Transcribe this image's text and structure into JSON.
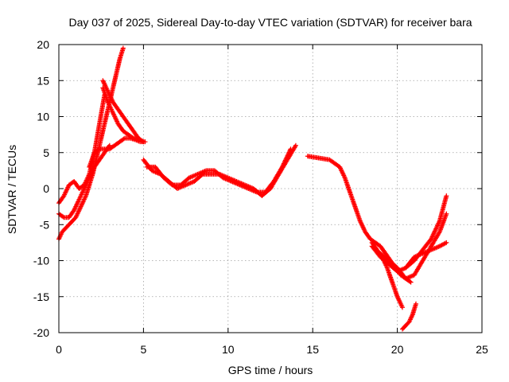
{
  "chart_data": {
    "type": "scatter",
    "title": "Day 037 of 2025, Sidereal Day-to-day VTEC variation (SDTVAR) for receiver bara",
    "xlabel": "GPS time / hours",
    "ylabel": "SDTVAR / TECUs",
    "xlim": [
      0,
      25
    ],
    "ylim": [
      -20,
      20
    ],
    "x_ticks": [
      0,
      5,
      10,
      15,
      20,
      25
    ],
    "y_ticks": [
      -20,
      -15,
      -10,
      -5,
      0,
      5,
      10,
      15,
      20
    ],
    "x_tick_labels": [
      "0",
      "5",
      "10",
      "15",
      "20",
      "25"
    ],
    "y_tick_labels": [
      "-20",
      "-15",
      "-10",
      "-5",
      "0",
      "5",
      "10",
      "15",
      "20"
    ],
    "grid": true,
    "marker": "plus",
    "color": "#ff0000",
    "series": [
      {
        "x": [
          0.0,
          0.2,
          0.4,
          0.6,
          0.8,
          1.0,
          1.2,
          1.4,
          1.6,
          1.8,
          2.0,
          2.2,
          2.4,
          2.6,
          2.8,
          3.0,
          3.2,
          3.4,
          3.6,
          3.8
        ],
        "y": [
          -7.0,
          -6.0,
          -5.5,
          -5.0,
          -4.5,
          -4.0,
          -3.0,
          -2.0,
          -1.0,
          0.5,
          2.0,
          4.0,
          6.0,
          8.0,
          10.0,
          12.0,
          14.0,
          16.0,
          18.0,
          19.5
        ]
      },
      {
        "x": [
          0.0,
          0.3,
          0.6,
          0.9,
          1.2,
          1.5,
          1.8,
          2.1,
          2.4,
          2.7,
          3.0
        ],
        "y": [
          -3.5,
          -4.0,
          -4.0,
          -3.0,
          -1.5,
          0.0,
          1.5,
          3.0,
          4.0,
          5.0,
          6.0
        ]
      },
      {
        "x": [
          0.0,
          0.3,
          0.6,
          0.9,
          1.2,
          1.5,
          1.8,
          2.1,
          2.4,
          2.7
        ],
        "y": [
          -2.0,
          -1.0,
          0.5,
          1.0,
          0.0,
          0.5,
          2.0,
          5.0,
          9.0,
          13.0
        ]
      },
      {
        "x": [
          2.6,
          2.9,
          3.2,
          3.5,
          3.8,
          4.1,
          4.4,
          4.7,
          5.0
        ],
        "y": [
          15.0,
          13.5,
          12.0,
          11.0,
          10.0,
          9.0,
          8.0,
          7.0,
          6.5
        ]
      },
      {
        "x": [
          2.6,
          2.9,
          3.2,
          3.5,
          3.8,
          4.1,
          4.4,
          4.7
        ],
        "y": [
          14.0,
          12.0,
          10.5,
          9.0,
          8.0,
          7.5,
          7.0,
          7.0
        ]
      },
      {
        "x": [
          1.8,
          2.1,
          2.4,
          2.7,
          3.0,
          3.3,
          3.6,
          3.9,
          4.2,
          4.5,
          4.8,
          5.1
        ],
        "y": [
          3.0,
          5.0,
          5.5,
          5.5,
          5.5,
          6.0,
          6.5,
          7.0,
          7.0,
          6.8,
          6.5,
          6.5
        ]
      },
      {
        "x": [
          5.0,
          5.5,
          6.0,
          6.5,
          7.0,
          7.5,
          8.0,
          8.5,
          9.0,
          9.5,
          10.0,
          10.5,
          11.0,
          11.5,
          12.0,
          12.5,
          13.0,
          13.5,
          14.0
        ],
        "y": [
          4.0,
          2.5,
          2.0,
          1.0,
          0.0,
          0.5,
          1.0,
          2.0,
          2.0,
          2.0,
          1.5,
          1.0,
          0.5,
          0.0,
          -1.0,
          0.0,
          2.0,
          4.0,
          6.0
        ]
      },
      {
        "x": [
          5.2,
          5.7,
          6.2,
          6.7,
          7.2,
          7.7,
          8.2,
          8.7,
          9.2,
          9.7,
          10.2,
          10.7,
          11.2,
          11.7,
          12.2,
          12.7,
          13.2,
          13.7
        ],
        "y": [
          3.0,
          3.0,
          1.5,
          0.5,
          0.5,
          1.5,
          2.0,
          2.5,
          2.5,
          1.5,
          1.0,
          0.5,
          0.0,
          -0.5,
          -0.5,
          1.0,
          3.0,
          5.5
        ]
      },
      {
        "x": [
          14.7,
          16.0,
          16.3,
          16.6,
          16.9,
          17.2,
          17.5,
          17.8,
          18.1,
          18.4,
          18.7,
          19.0,
          19.3,
          19.6,
          19.9,
          20.2,
          20.5,
          20.8
        ],
        "y": [
          4.5,
          4.0,
          3.5,
          3.0,
          1.5,
          -0.5,
          -2.5,
          -4.5,
          -6.0,
          -7.0,
          -7.5,
          -8.0,
          -9.0,
          -10.0,
          -11.0,
          -12.0,
          -12.5,
          -13.0
        ]
      },
      {
        "x": [
          18.5,
          18.8,
          19.1,
          19.4,
          19.7,
          20.0,
          20.3
        ],
        "y": [
          -7.5,
          -8.5,
          -9.5,
          -11.0,
          -13.0,
          -15.0,
          -16.5
        ]
      },
      {
        "x": [
          20.3,
          20.5,
          20.7,
          20.9,
          21.1
        ],
        "y": [
          -19.5,
          -19.0,
          -18.5,
          -17.5,
          -16.0
        ]
      },
      {
        "x": [
          18.5,
          19.0,
          19.5,
          20.0,
          20.5,
          21.0,
          21.5,
          22.0,
          22.5,
          22.9
        ],
        "y": [
          -8.0,
          -9.5,
          -10.5,
          -11.5,
          -11.0,
          -10.0,
          -8.5,
          -7.0,
          -4.5,
          -1.0
        ]
      },
      {
        "x": [
          19.0,
          19.5,
          20.0,
          20.5,
          21.0,
          21.5,
          22.0,
          22.5,
          22.9
        ],
        "y": [
          -9.0,
          -10.0,
          -11.0,
          -12.5,
          -12.0,
          -10.0,
          -8.0,
          -6.0,
          -3.5
        ]
      },
      {
        "x": [
          20.5,
          21.0,
          21.5,
          22.0,
          22.5,
          22.9
        ],
        "y": [
          -11.0,
          -9.5,
          -9.0,
          -8.5,
          -8.0,
          -7.5
        ]
      }
    ]
  }
}
